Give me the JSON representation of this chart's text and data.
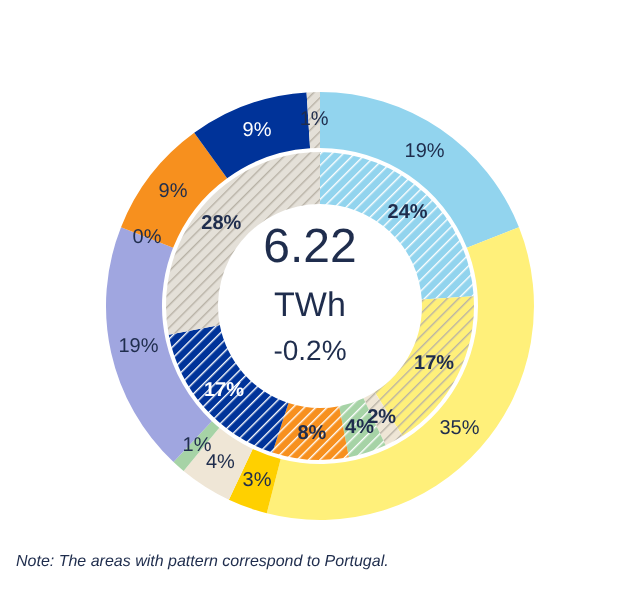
{
  "chart_data": {
    "type": "donut",
    "categories": [
      null,
      null,
      null,
      null,
      null,
      null,
      null,
      null,
      null,
      null
    ],
    "series": [
      {
        "colors": [
          "#92d4ee",
          "#fff07a",
          "#ffd000",
          "#efe6d6",
          "#a6d3a6",
          "#a0a6e0",
          "#b0b0b0",
          "#f7901e",
          "#003399",
          "#e4e0d8"
        ],
        "values": [
          19,
          35,
          3,
          4,
          1,
          19,
          0,
          9,
          9,
          1
        ],
        "value_labels": [
          "19%",
          "35%",
          "3%",
          "4%",
          "1%",
          "19%",
          "0%",
          "9%",
          "9%",
          "1%"
        ]
      },
      {
        "colors": [
          "#92d4ee",
          "#fff07a",
          "#ffd000",
          "#efe6d6",
          "#a6d3a6",
          "#a0a6e0",
          "#b0b0b0",
          "#f7901e",
          "#003399",
          "#e4e0d8"
        ],
        "values": [
          24,
          17,
          null,
          2,
          4,
          null,
          null,
          8,
          17,
          28
        ],
        "value_labels": [
          "24%",
          "17%",
          null,
          "2%",
          "4%",
          null,
          null,
          "8%",
          "17%",
          "28%"
        ]
      }
    ],
    "legend": false,
    "annotations": [
      "6.22",
      "TWh",
      "-0.2%",
      "Note: The  areas with pattern correspond  to Portugal."
    ]
  }
}
